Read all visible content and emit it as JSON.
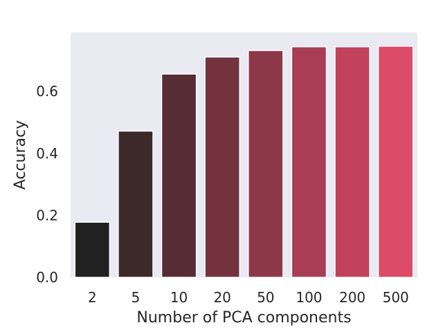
{
  "chart_data": {
    "type": "bar",
    "title": "",
    "xlabel": "Number of PCA components",
    "ylabel": "Accuracy",
    "categories": [
      "2",
      "5",
      "10",
      "20",
      "50",
      "100",
      "200",
      "500"
    ],
    "values": [
      0.178,
      0.472,
      0.656,
      0.711,
      0.732,
      0.744,
      0.744,
      0.746
    ],
    "ylim": [
      0,
      0.79
    ],
    "yticks": [
      0.0,
      0.2,
      0.4,
      0.6
    ],
    "ytick_labels": [
      "0.0",
      "0.2",
      "0.4",
      "0.6"
    ],
    "grid": false,
    "background_color": "#eaeaf2",
    "bar_colors": [
      "#212121",
      "#3c2a2b",
      "#572c34",
      "#72333f",
      "#8d3849",
      "#a83d53",
      "#c2425c",
      "#dc4b67"
    ],
    "bar_edge_color": "#ffffff"
  }
}
